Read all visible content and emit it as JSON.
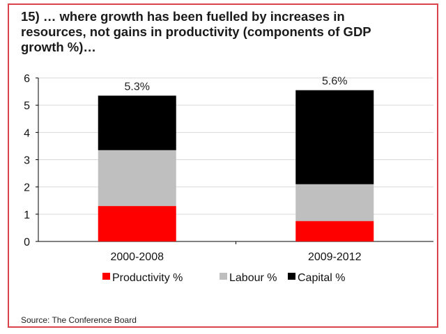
{
  "chart_data": {
    "type": "bar",
    "stacked": true,
    "title": "15) … where growth has been fuelled by increases in resources, not gains in productivity (components of GDP growth %)…",
    "categories": [
      "2000-2008",
      "2009-2012"
    ],
    "series": [
      {
        "name": "Productivity %",
        "color": "#ff0000",
        "values": [
          1.3,
          0.75
        ]
      },
      {
        "name": "Labour %",
        "color": "#bfbfbf",
        "values": [
          2.05,
          1.35
        ]
      },
      {
        "name": "Capital %",
        "color": "#000000",
        "values": [
          2.0,
          3.45
        ]
      }
    ],
    "totals_labels": [
      "5.3%",
      "5.6%"
    ],
    "ylim": [
      0,
      6
    ],
    "yticks": [
      "0",
      "1",
      "2",
      "3",
      "4",
      "5",
      "6"
    ],
    "xlabel": "",
    "ylabel": "",
    "grid": true,
    "legend_position": "bottom",
    "source": "Source: The Conference Board"
  }
}
